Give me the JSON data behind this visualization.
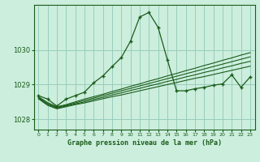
{
  "background_color": "#cceedd",
  "grid_color": "#99ccbb",
  "line_color": "#1a5c1a",
  "title": "Graphe pression niveau de la mer (hPa)",
  "xlim": [
    -0.5,
    23.5
  ],
  "ylim": [
    1027.7,
    1031.3
  ],
  "yticks": [
    1028,
    1029,
    1030
  ],
  "xticks": [
    0,
    1,
    2,
    3,
    4,
    5,
    6,
    7,
    8,
    9,
    10,
    11,
    12,
    13,
    14,
    15,
    16,
    17,
    18,
    19,
    20,
    21,
    22,
    23
  ],
  "series1": [
    1028.68,
    1028.58,
    1028.38,
    1028.58,
    1028.68,
    1028.78,
    1029.05,
    1029.25,
    1029.52,
    1029.78,
    1030.25,
    1030.95,
    1031.08,
    1030.65,
    1029.72,
    1028.82,
    1028.82,
    1028.88,
    1028.92,
    1028.98,
    1029.02,
    1029.28,
    1028.92,
    1029.22
  ],
  "series2": [
    1028.65,
    1028.48,
    1028.36,
    1028.42,
    1028.5,
    1028.58,
    1028.65,
    1028.72,
    1028.8,
    1028.87,
    1028.95,
    1029.02,
    1029.1,
    1029.17,
    1029.25,
    1029.32,
    1029.4,
    1029.47,
    1029.55,
    1029.62,
    1029.7,
    1029.77,
    1029.85,
    1029.92
  ],
  "series3": [
    1028.63,
    1028.45,
    1028.34,
    1028.4,
    1028.47,
    1028.54,
    1028.61,
    1028.68,
    1028.75,
    1028.82,
    1028.89,
    1028.96,
    1029.03,
    1029.1,
    1029.17,
    1029.24,
    1029.31,
    1029.38,
    1029.45,
    1029.52,
    1029.59,
    1029.66,
    1029.73,
    1029.8
  ],
  "series4": [
    1028.61,
    1028.43,
    1028.32,
    1028.38,
    1028.44,
    1028.5,
    1028.57,
    1028.63,
    1028.7,
    1028.76,
    1028.83,
    1028.89,
    1028.96,
    1029.02,
    1029.09,
    1029.15,
    1029.22,
    1029.28,
    1029.35,
    1029.41,
    1029.48,
    1029.54,
    1029.61,
    1029.67
  ],
  "series5": [
    1028.59,
    1028.4,
    1028.3,
    1028.36,
    1028.42,
    1028.47,
    1028.53,
    1028.59,
    1028.65,
    1028.7,
    1028.76,
    1028.82,
    1028.88,
    1028.94,
    1029.0,
    1029.06,
    1029.12,
    1029.18,
    1029.23,
    1029.29,
    1029.35,
    1029.41,
    1029.47,
    1029.53
  ]
}
